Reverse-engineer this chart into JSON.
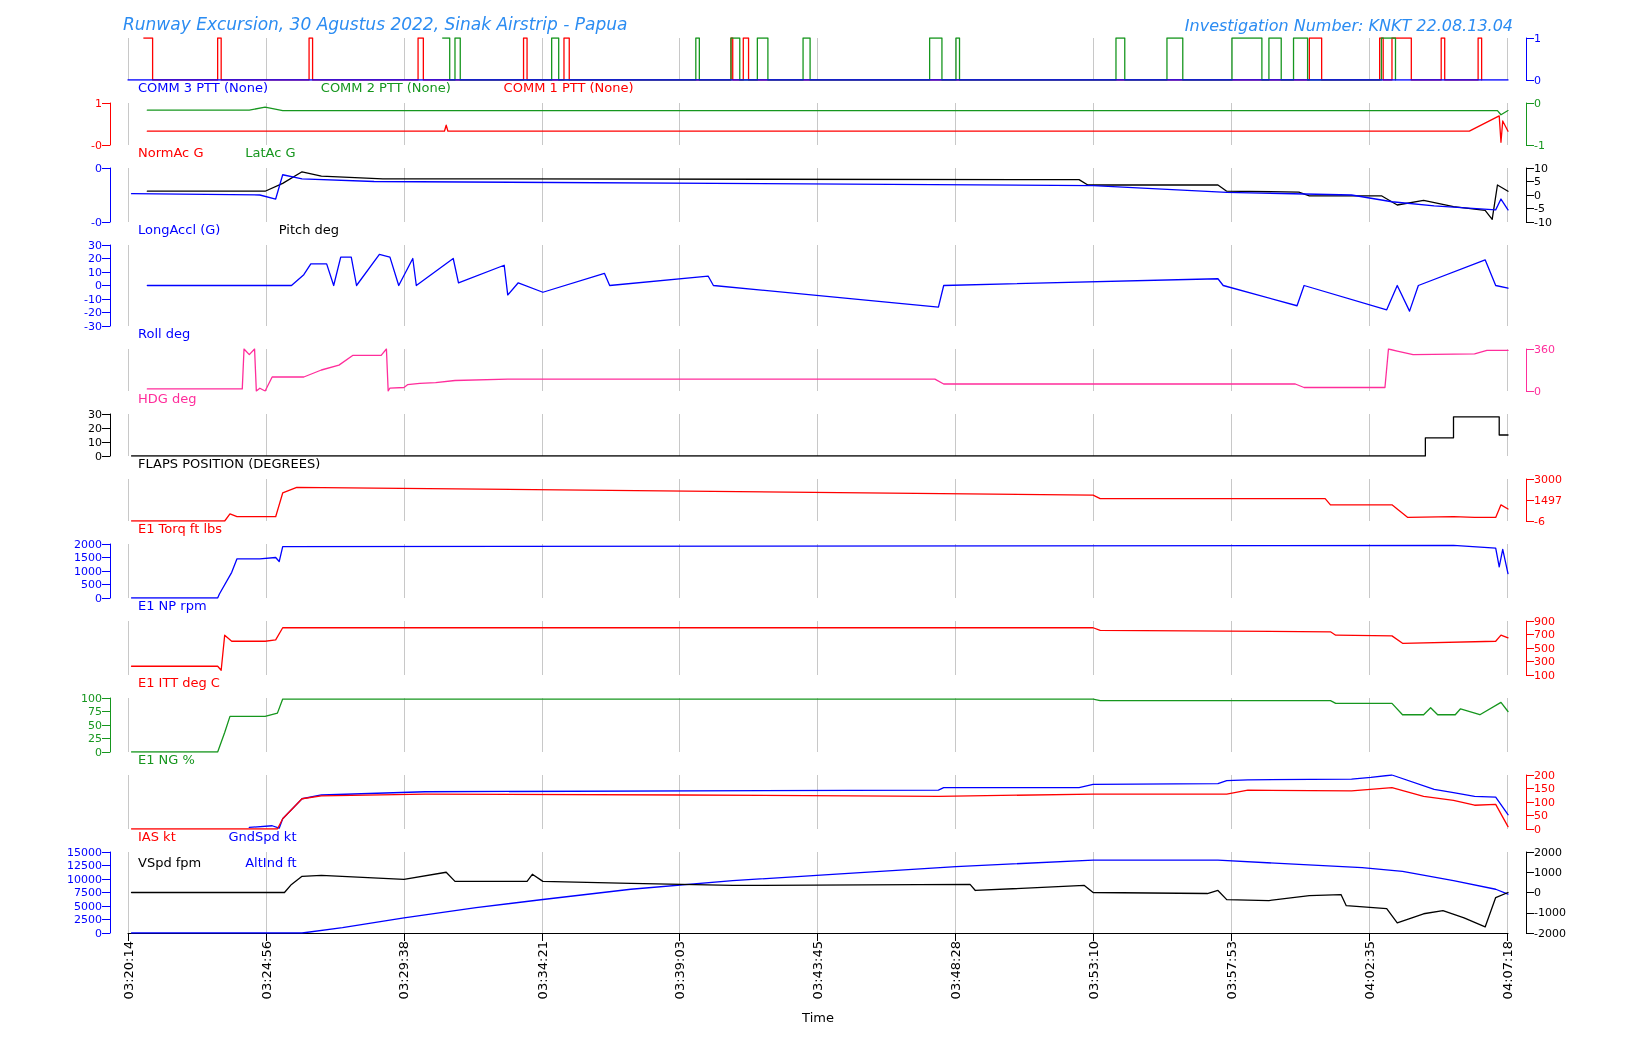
{
  "chart_data": [
    {
      "type": "step",
      "title": "Runway Excursion, 30 Agustus 2022, Sinak Airstrip - Papua",
      "subtitle": "Investigation Number: KNKT 22.08.13.04",
      "marker": "none",
      "grid": "x",
      "tick_labels": "y",
      "xlim": [
        3.337,
        4.122
      ],
      "xticks": [
        {
          "value": 3.3372,
          "label": null
        },
        {
          "value": 3.4156,
          "label": null
        },
        {
          "value": 3.4939,
          "label": null
        },
        {
          "value": 3.5725,
          "label": null
        },
        {
          "value": 3.6508,
          "label": null
        },
        {
          "value": 3.7292,
          "label": null
        },
        {
          "value": 3.8078,
          "label": null
        },
        {
          "value": 3.8861,
          "label": null
        },
        {
          "value": 3.9647,
          "label": null
        },
        {
          "value": 4.0431,
          "label": null
        },
        {
          "value": 4.1217,
          "label": null
        }
      ],
      "y2lim": [
        0,
        1
      ],
      "y2ticks": [
        1,
        0
      ],
      "series": [
        {
          "name": "COMM 3 PTT (None)",
          "color": "#0000ff",
          "axis": "y2",
          "x": [
            3.337,
            4.122
          ],
          "values": [
            0,
            0
          ]
        },
        {
          "name": "COMM 2 PTT (None)",
          "color": "#16961e",
          "axis": "y2",
          "x": [
            3.516,
            3.52,
            3.523,
            3.526,
            3.578,
            3.582,
            3.66,
            3.662,
            3.68,
            3.685,
            3.695,
            3.701,
            3.721,
            3.725,
            3.793,
            3.8,
            3.808,
            3.81,
            3.899,
            3.904,
            3.928,
            3.937,
            3.965,
            3.982,
            3.986,
            3.993,
            4.0,
            4.008,
            4.05,
            4.058
          ],
          "values": [
            1,
            0,
            1,
            0,
            1,
            0,
            1,
            0,
            1,
            0,
            1,
            0,
            1,
            0,
            1,
            0,
            1,
            0,
            1,
            0,
            1,
            0,
            1,
            0,
            1,
            0,
            1,
            0,
            1,
            0
          ]
        },
        {
          "name": "COMM 1 PTT (None)",
          "color": "#ff0000",
          "axis": "y2",
          "x": [
            3.346,
            3.351,
            3.388,
            3.39,
            3.44,
            3.442,
            3.502,
            3.505,
            3.562,
            3.564,
            3.585,
            3.588,
            3.68,
            3.681,
            3.687,
            3.69,
            4.009,
            4.016,
            4.049,
            4.051,
            4.056,
            4.067,
            4.084,
            4.086,
            4.105,
            4.107
          ],
          "values": [
            1,
            0,
            1,
            0,
            1,
            0,
            1,
            0,
            1,
            0,
            1,
            0,
            1,
            0,
            1,
            0,
            1,
            0,
            1,
            0,
            1,
            0,
            1,
            0,
            1,
            0
          ]
        }
      ]
    },
    {
      "type": "line",
      "marker": "none",
      "grid": "x",
      "tick_labels": "y",
      "xlim": [
        3.337,
        4.122
      ],
      "xticks": [
        {
          "value": 3.3372,
          "label": null
        },
        {
          "value": 3.4156,
          "label": null
        },
        {
          "value": 3.4939,
          "label": null
        },
        {
          "value": 3.5725,
          "label": null
        },
        {
          "value": 3.6508,
          "label": null
        },
        {
          "value": 3.7292,
          "label": null
        },
        {
          "value": 3.8078,
          "label": null
        },
        {
          "value": 3.8861,
          "label": null
        },
        {
          "value": 3.9647,
          "label": null
        },
        {
          "value": 4.0431,
          "label": null
        },
        {
          "value": 4.1217,
          "label": null
        }
      ],
      "ylim": [
        -0.4,
        1
      ],
      "yticks": [
        1,
        {
          "value": -0.4,
          "label": "-0"
        }
      ],
      "y2lim": [
        -1,
        0
      ],
      "y2ticks": [
        0,
        -1
      ],
      "series": [
        {
          "name": "NormAc G",
          "color": "#ff0000",
          "x": [
            3.348,
            3.517,
            3.518,
            3.519,
            3.7,
            4.1,
            4.117,
            4.118,
            4.119,
            4.122
          ],
          "values": [
            0.06,
            0.06,
            0.26,
            0.06,
            0.06,
            0.06,
            0.57,
            -0.31,
            0.4,
            0.06
          ]
        },
        {
          "name": "LatAc G",
          "color": "#16961e",
          "axis": "y2",
          "x": [
            3.348,
            3.406,
            3.415,
            3.425,
            4.116,
            4.118,
            4.122
          ],
          "values": [
            -0.17,
            -0.17,
            -0.1,
            -0.18,
            -0.18,
            -0.28,
            -0.18
          ]
        }
      ]
    },
    {
      "type": "line",
      "marker": "none",
      "grid": "x",
      "tick_labels": "y",
      "xlim": [
        3.337,
        4.122
      ],
      "xticks": [
        {
          "value": 3.3372,
          "label": null
        },
        {
          "value": 3.4156,
          "label": null
        },
        {
          "value": 3.4939,
          "label": null
        },
        {
          "value": 3.5725,
          "label": null
        },
        {
          "value": 3.6508,
          "label": null
        },
        {
          "value": 3.7292,
          "label": null
        },
        {
          "value": 3.8078,
          "label": null
        },
        {
          "value": 3.8861,
          "label": null
        },
        {
          "value": 3.9647,
          "label": null
        },
        {
          "value": 4.0431,
          "label": null
        },
        {
          "value": 4.1217,
          "label": null
        }
      ],
      "ylim": [
        -0.4,
        0
      ],
      "yticks": [
        0,
        {
          "value": -0.4,
          "label": "-0"
        }
      ],
      "y2lim": [
        -10,
        10
      ],
      "y2ticks": [
        10,
        5,
        0,
        -5,
        -10
      ],
      "series": [
        {
          "name": "LongAccl (G)",
          "color": "#0000ff",
          "x": [
            3.339,
            3.412,
            3.421,
            3.425,
            3.436,
            3.477,
            3.886,
            3.962,
            4.033,
            4.056,
            4.08,
            4.115,
            4.118,
            4.122
          ],
          "values": [
            -0.19,
            -0.2,
            -0.23,
            -0.05,
            -0.08,
            -0.1,
            -0.13,
            -0.18,
            -0.2,
            -0.25,
            -0.28,
            -0.31,
            -0.23,
            -0.31
          ]
        },
        {
          "name": "Pitch deg",
          "color": "#000000",
          "axis": "y2",
          "x": [
            3.348,
            3.415,
            3.425,
            3.436,
            3.447,
            3.482,
            3.878,
            3.883,
            3.957,
            3.962,
            4.003,
            4.009,
            4.05,
            4.059,
            4.074,
            4.091,
            4.109,
            4.113,
            4.116,
            4.122
          ],
          "values": [
            1.4,
            1.4,
            4.3,
            8.6,
            7,
            6,
            5.7,
            3.7,
            3.7,
            1.4,
            1.1,
            -0.3,
            -0.3,
            -3.7,
            -2,
            -4.3,
            -5.7,
            -9,
            3.7,
            1.4
          ]
        }
      ]
    },
    {
      "type": "line",
      "marker": "none",
      "grid": "x",
      "tick_labels": "y",
      "xlim": [
        3.337,
        4.122
      ],
      "xticks": [
        {
          "value": 3.3372,
          "label": null
        },
        {
          "value": 3.4156,
          "label": null
        },
        {
          "value": 3.4939,
          "label": null
        },
        {
          "value": 3.5725,
          "label": null
        },
        {
          "value": 3.6508,
          "label": null
        },
        {
          "value": 3.7292,
          "label": null
        },
        {
          "value": 3.8078,
          "label": null
        },
        {
          "value": 3.8861,
          "label": null
        },
        {
          "value": 3.9647,
          "label": null
        },
        {
          "value": 4.0431,
          "label": null
        },
        {
          "value": 4.1217,
          "label": null
        }
      ],
      "ylim": [
        -30,
        30
      ],
      "yticks": [
        30,
        20,
        10,
        0,
        -10,
        -20,
        -30
      ],
      "series": [
        {
          "name": "Roll deg",
          "color": "#0000ff",
          "x": [
            3.348,
            3.43,
            3.437,
            3.441,
            3.45,
            3.454,
            3.458,
            3.464,
            3.467,
            3.48,
            3.486,
            3.491,
            3.499,
            3.501,
            3.522,
            3.525,
            3.551,
            3.553,
            3.559,
            3.573,
            3.608,
            3.611,
            3.667,
            3.67,
            3.798,
            3.801,
            3.957,
            3.96,
            4.002,
            4.006,
            4.053,
            4.059,
            4.066,
            4.071,
            4.109,
            4.115,
            4.122
          ],
          "values": [
            0,
            0,
            8,
            16,
            16,
            0,
            21,
            21,
            0,
            23,
            21,
            0,
            20,
            0,
            20,
            2,
            15,
            -7,
            2,
            -5,
            9,
            0,
            7,
            0,
            -16,
            0,
            5,
            0,
            -15,
            0,
            -18,
            0,
            -19,
            0,
            19,
            0,
            -2
          ]
        }
      ]
    },
    {
      "type": "line",
      "marker": "none",
      "grid": "x",
      "tick_labels": "y",
      "xlim": [
        3.337,
        4.122
      ],
      "xticks": [
        {
          "value": 3.3372,
          "label": null
        },
        {
          "value": 3.4156,
          "label": null
        },
        {
          "value": 3.4939,
          "label": null
        },
        {
          "value": 3.5725,
          "label": null
        },
        {
          "value": 3.6508,
          "label": null
        },
        {
          "value": 3.7292,
          "label": null
        },
        {
          "value": 3.8078,
          "label": null
        },
        {
          "value": 3.8861,
          "label": null
        },
        {
          "value": 3.9647,
          "label": null
        },
        {
          "value": 4.0431,
          "label": null
        },
        {
          "value": 4.1217,
          "label": null
        }
      ],
      "y2lim": [
        0,
        360
      ],
      "y2ticks": [
        360,
        0
      ],
      "series": [
        {
          "name": "HDG deg",
          "color": "#ff2d9b",
          "axis": "y2",
          "x": [
            3.348,
            3.402,
            3.403,
            3.406,
            3.409,
            3.41,
            3.412,
            3.415,
            3.419,
            3.437,
            3.447,
            3.457,
            3.465,
            3.481,
            3.484,
            3.485,
            3.486,
            3.494,
            3.496,
            3.503,
            3.512,
            3.523,
            3.553,
            3.796,
            3.801,
            4.001,
            4.006,
            4.052,
            4.054,
            4.059,
            4.068,
            4.103,
            4.11,
            4.122
          ],
          "values": [
            18,
            18,
            360,
            312,
            360,
            0,
            24,
            0,
            120,
            120,
            180,
            222,
            306,
            306,
            360,
            0,
            24,
            30,
            54,
            66,
            72,
            90,
            102,
            102,
            60,
            60,
            30,
            30,
            360,
            342,
            312,
            318,
            348,
            348
          ]
        }
      ]
    },
    {
      "type": "step",
      "marker": "none",
      "grid": "x",
      "tick_labels": "y",
      "xlim": [
        3.337,
        4.122
      ],
      "xticks": [
        {
          "value": 3.3372,
          "label": null
        },
        {
          "value": 3.4156,
          "label": null
        },
        {
          "value": 3.4939,
          "label": null
        },
        {
          "value": 3.5725,
          "label": null
        },
        {
          "value": 3.6508,
          "label": null
        },
        {
          "value": 3.7292,
          "label": null
        },
        {
          "value": 3.8078,
          "label": null
        },
        {
          "value": 3.8861,
          "label": null
        },
        {
          "value": 3.9647,
          "label": null
        },
        {
          "value": 4.0431,
          "label": null
        },
        {
          "value": 4.1217,
          "label": null
        }
      ],
      "ylim": [
        0,
        30
      ],
      "yticks": [
        30,
        20,
        10,
        0
      ],
      "series": [
        {
          "name": "FLAPS POSITION (DEGREES)",
          "color": "#000000",
          "x": [
            3.339,
            4.075,
            4.091,
            4.117,
            4.122
          ],
          "values": [
            0,
            13,
            28,
            15,
            15
          ]
        }
      ]
    },
    {
      "type": "line",
      "marker": "none",
      "grid": "x",
      "tick_labels": "y",
      "xlim": [
        3.337,
        4.122
      ],
      "xticks": [
        {
          "value": 3.3372,
          "label": null
        },
        {
          "value": 3.4156,
          "label": null
        },
        {
          "value": 3.4939,
          "label": null
        },
        {
          "value": 3.5725,
          "label": null
        },
        {
          "value": 3.6508,
          "label": null
        },
        {
          "value": 3.7292,
          "label": null
        },
        {
          "value": 3.8078,
          "label": null
        },
        {
          "value": 3.8861,
          "label": null
        },
        {
          "value": 3.9647,
          "label": null
        },
        {
          "value": 4.0431,
          "label": null
        },
        {
          "value": 4.1217,
          "label": null
        }
      ],
      "y2lim": [
        -6,
        3000
      ],
      "y2ticks": [
        3000,
        1497,
        -6
      ],
      "series": [
        {
          "name": "E1 Torq ft lbs",
          "color": "#ff0000",
          "axis": "y2",
          "x": [
            3.339,
            3.392,
            3.395,
            3.399,
            3.421,
            3.425,
            3.433,
            3.477,
            3.886,
            3.89,
            4.018,
            4.021,
            4.056,
            4.062,
            4.065,
            4.091,
            4.103,
            4.115,
            4.118,
            4.122
          ],
          "values": [
            -6,
            -6,
            500,
            300,
            300,
            2000,
            2400,
            2350,
            1850,
            1600,
            1600,
            1150,
            1150,
            550,
            250,
            300,
            250,
            250,
            1150,
            850
          ]
        }
      ]
    },
    {
      "type": "line",
      "marker": "none",
      "grid": "x",
      "tick_labels": "y",
      "xlim": [
        3.337,
        4.122
      ],
      "xticks": [
        {
          "value": 3.3372,
          "label": null
        },
        {
          "value": 3.4156,
          "label": null
        },
        {
          "value": 3.4939,
          "label": null
        },
        {
          "value": 3.5725,
          "label": null
        },
        {
          "value": 3.6508,
          "label": null
        },
        {
          "value": 3.7292,
          "label": null
        },
        {
          "value": 3.8078,
          "label": null
        },
        {
          "value": 3.8861,
          "label": null
        },
        {
          "value": 3.9647,
          "label": null
        },
        {
          "value": 4.0431,
          "label": null
        },
        {
          "value": 4.1217,
          "label": null
        }
      ],
      "ylim": [
        0,
        2000
      ],
      "yticks": [
        2000,
        1500,
        1000,
        500,
        0
      ],
      "series": [
        {
          "name": "E1 NP rpm",
          "color": "#0000ff",
          "x": [
            3.339,
            3.388,
            3.389,
            3.396,
            3.399,
            3.412,
            3.421,
            3.423,
            3.425,
            4.091,
            4.115,
            4.117,
            4.119,
            4.122
          ],
          "values": [
            0,
            0,
            150,
            950,
            1450,
            1450,
            1500,
            1350,
            1900,
            1950,
            1850,
            1150,
            1800,
            900
          ]
        }
      ]
    },
    {
      "type": "line",
      "marker": "none",
      "grid": "x",
      "tick_labels": "y",
      "xlim": [
        3.337,
        4.122
      ],
      "xticks": [
        {
          "value": 3.3372,
          "label": null
        },
        {
          "value": 3.4156,
          "label": null
        },
        {
          "value": 3.4939,
          "label": null
        },
        {
          "value": 3.5725,
          "label": null
        },
        {
          "value": 3.6508,
          "label": null
        },
        {
          "value": 3.7292,
          "label": null
        },
        {
          "value": 3.8078,
          "label": null
        },
        {
          "value": 3.8861,
          "label": null
        },
        {
          "value": 3.9647,
          "label": null
        },
        {
          "value": 4.0431,
          "label": null
        },
        {
          "value": 4.1217,
          "label": null
        }
      ],
      "y2lim": [
        100,
        900
      ],
      "y2ticks": [
        900,
        700,
        500,
        300,
        100
      ],
      "series": [
        {
          "name": "E1 ITT deg C",
          "color": "#ff0000",
          "axis": "y2",
          "x": [
            3.339,
            3.388,
            3.39,
            3.392,
            3.396,
            3.415,
            3.421,
            3.425,
            3.886,
            3.89,
            4.021,
            4.024,
            4.056,
            4.062,
            4.115,
            4.118,
            4.122
          ],
          "values": [
            230,
            230,
            170,
            690,
            600,
            600,
            620,
            800,
            800,
            760,
            740,
            690,
            680,
            570,
            600,
            690,
            650
          ]
        }
      ]
    },
    {
      "type": "line",
      "marker": "none",
      "grid": "x",
      "tick_labels": "y",
      "xlim": [
        3.337,
        4.122
      ],
      "xticks": [
        {
          "value": 3.3372,
          "label": null
        },
        {
          "value": 3.4156,
          "label": null
        },
        {
          "value": 3.4939,
          "label": null
        },
        {
          "value": 3.5725,
          "label": null
        },
        {
          "value": 3.6508,
          "label": null
        },
        {
          "value": 3.7292,
          "label": null
        },
        {
          "value": 3.8078,
          "label": null
        },
        {
          "value": 3.8861,
          "label": null
        },
        {
          "value": 3.9647,
          "label": null
        },
        {
          "value": 4.0431,
          "label": null
        },
        {
          "value": 4.1217,
          "label": null
        }
      ],
      "ylim": [
        0,
        100
      ],
      "yticks": [
        100,
        75,
        50,
        25,
        0
      ],
      "series": [
        {
          "name": "E1 NG %",
          "color": "#16961e",
          "x": [
            3.339,
            3.388,
            3.392,
            3.395,
            3.415,
            3.422,
            3.425,
            3.886,
            3.89,
            4.021,
            4.024,
            4.056,
            4.062,
            4.074,
            4.078,
            4.082,
            4.092,
            4.095,
            4.106,
            4.118,
            4.122
          ],
          "values": [
            0,
            0,
            36,
            66,
            66,
            72,
            98,
            98,
            95,
            95,
            90,
            90,
            69,
            69,
            82,
            69,
            69,
            80,
            69,
            92,
            75
          ]
        }
      ]
    },
    {
      "type": "line",
      "marker": "none",
      "grid": "x",
      "tick_labels": "y",
      "xlim": [
        3.337,
        4.122
      ],
      "xticks": [
        {
          "value": 3.3372,
          "label": null
        },
        {
          "value": 3.4156,
          "label": null
        },
        {
          "value": 3.4939,
          "label": null
        },
        {
          "value": 3.5725,
          "label": null
        },
        {
          "value": 3.6508,
          "label": null
        },
        {
          "value": 3.7292,
          "label": null
        },
        {
          "value": 3.8078,
          "label": null
        },
        {
          "value": 3.8861,
          "label": null
        },
        {
          "value": 3.9647,
          "label": null
        },
        {
          "value": 4.0431,
          "label": null
        },
        {
          "value": 4.1217,
          "label": null
        }
      ],
      "y2lim": [
        0,
        200
      ],
      "y2ticks": [
        200,
        150,
        100,
        50,
        0
      ],
      "series": [
        {
          "name": "IAS kt",
          "color": "#ff0000",
          "axis": "y2",
          "x": [
            3.339,
            3.422,
            3.425,
            3.436,
            3.447,
            3.506,
            3.652,
            3.798,
            3.886,
            3.962,
            3.974,
            4.033,
            4.056,
            4.074,
            4.091,
            4.103,
            4.115,
            4.122
          ],
          "values": [
            0,
            0,
            38,
            112,
            123,
            129,
            126,
            121,
            129,
            129,
            144,
            141,
            153,
            121,
            106,
            88,
            91,
            9
          ]
        },
        {
          "name": "GndSpd kt",
          "color": "#0000ff",
          "axis": "y2",
          "x": [
            3.406,
            3.419,
            3.423,
            3.425,
            3.436,
            3.447,
            3.506,
            3.798,
            3.801,
            3.878,
            3.886,
            3.957,
            3.962,
            3.974,
            4.033,
            4.044,
            4.056,
            4.08,
            4.091,
            4.103,
            4.115,
            4.122
          ],
          "values": [
            6,
            12,
            3,
            38,
            112,
            126,
            138,
            144,
            153,
            153,
            165,
            168,
            179,
            182,
            185,
            191,
            200,
            147,
            135,
            121,
            118,
            53
          ]
        }
      ]
    },
    {
      "type": "line",
      "marker": "none",
      "grid": "x",
      "xlabel": "Time",
      "xlim": [
        3.337,
        4.122
      ],
      "xticks": [
        {
          "value": 3.3372,
          "label": "03:20:14"
        },
        {
          "value": 3.4156,
          "label": "03:24:56"
        },
        {
          "value": 3.4939,
          "label": "03:29:38"
        },
        {
          "value": 3.5725,
          "label": "03:34:21"
        },
        {
          "value": 3.6508,
          "label": "03:39:03"
        },
        {
          "value": 3.7292,
          "label": "03:43:45"
        },
        {
          "value": 3.8078,
          "label": "03:48:28"
        },
        {
          "value": 3.8861,
          "label": "03:53:10"
        },
        {
          "value": 3.9647,
          "label": "03:57:53"
        },
        {
          "value": 4.0431,
          "label": "04:02:35"
        },
        {
          "value": 4.1217,
          "label": "04:07:18"
        }
      ],
      "ylim": [
        0,
        15000
      ],
      "yticks": [
        15000,
        12500,
        10000,
        7500,
        5000,
        2500,
        0
      ],
      "y2lim": [
        -2000,
        2000
      ],
      "y2ticks": [
        2000,
        1000,
        0,
        -1000,
        -2000
      ],
      "series": [
        {
          "name": "VSpd fpm",
          "color": "#000000",
          "axis": "y2",
          "x": [
            3.339,
            3.426,
            3.43,
            3.436,
            3.447,
            3.494,
            3.518,
            3.523,
            3.564,
            3.567,
            3.573,
            3.623,
            3.681,
            3.816,
            3.819,
            3.881,
            3.886,
            3.951,
            3.957,
            3.962,
            3.986,
            4.009,
            4.027,
            4.03,
            4.053,
            4.059,
            4.074,
            4.085,
            4.097,
            4.109,
            4.115,
            4.122
          ],
          "values": [
            0,
            0,
            400,
            800,
            850,
            650,
            1000,
            550,
            550,
            900,
            550,
            450,
            350,
            400,
            100,
            350,
            0,
            -50,
            100,
            -350,
            -400,
            -150,
            -100,
            -650,
            -800,
            -1500,
            -1050,
            -900,
            -1250,
            -1700,
            -250,
            0
          ]
        },
        {
          "name": "AltInd ft",
          "color": "#0000ff",
          "x": [
            3.339,
            3.436,
            3.459,
            3.494,
            3.535,
            3.573,
            3.623,
            3.681,
            3.74,
            3.808,
            3.886,
            3.957,
            4.003,
            4.039,
            4.062,
            4.091,
            4.115,
            4.122
          ],
          "values": [
            0,
            0,
            1000,
            2800,
            4700,
            6200,
            8100,
            9700,
            10900,
            12300,
            13500,
            13500,
            12700,
            12100,
            11400,
            9700,
            8100,
            7200
          ]
        }
      ]
    }
  ]
}
